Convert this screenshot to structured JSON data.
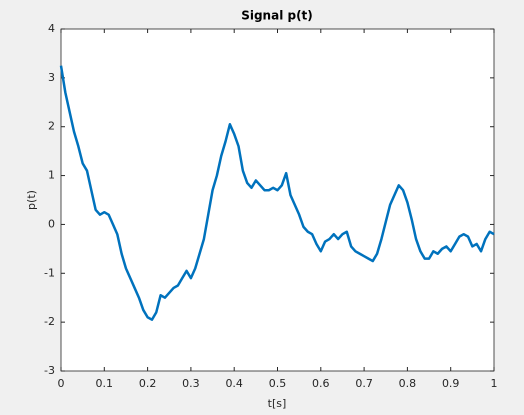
{
  "chart_data": {
    "type": "line",
    "title": "Signal p(t)",
    "x_label": "t[s]",
    "y_label": "p(t)",
    "x": [
      0,
      0.01,
      0.02,
      0.03,
      0.04,
      0.05,
      0.06,
      0.07,
      0.08,
      0.09,
      0.1,
      0.11,
      0.12,
      0.13,
      0.14,
      0.15,
      0.16,
      0.17,
      0.18,
      0.19,
      0.2,
      0.21,
      0.22,
      0.23,
      0.24,
      0.25,
      0.26,
      0.27,
      0.28,
      0.29,
      0.3,
      0.31,
      0.32,
      0.33,
      0.34,
      0.35,
      0.36,
      0.37,
      0.38,
      0.39,
      0.4,
      0.41,
      0.42,
      0.43,
      0.44,
      0.45,
      0.46,
      0.47,
      0.48,
      0.49,
      0.5,
      0.51,
      0.52,
      0.53,
      0.54,
      0.55,
      0.56,
      0.57,
      0.58,
      0.59,
      0.6,
      0.61,
      0.62,
      0.63,
      0.64,
      0.65,
      0.66,
      0.67,
      0.68,
      0.69,
      0.7,
      0.71,
      0.72,
      0.73,
      0.74,
      0.75,
      0.76,
      0.77,
      0.78,
      0.79,
      0.8,
      0.81,
      0.82,
      0.83,
      0.84,
      0.85,
      0.86,
      0.87,
      0.88,
      0.89,
      0.9,
      0.91,
      0.92,
      0.93,
      0.94,
      0.95,
      0.96,
      0.97,
      0.98,
      0.99,
      1
    ],
    "series": [
      {
        "name": "p(t)",
        "color": "#0072bd",
        "values": [
          3.25,
          2.7,
          2.3,
          1.9,
          1.6,
          1.25,
          1.1,
          0.7,
          0.3,
          0.2,
          0.25,
          0.2,
          0,
          -0.2,
          -0.6,
          -0.9,
          -1.1,
          -1.3,
          -1.5,
          -1.75,
          -1.9,
          -1.95,
          -1.8,
          -1.45,
          -1.5,
          -1.4,
          -1.3,
          -1.25,
          -1.1,
          -0.95,
          -1.1,
          -0.9,
          -0.6,
          -0.3,
          0.2,
          0.7,
          1,
          1.4,
          1.7,
          2.05,
          1.85,
          1.6,
          1.1,
          0.85,
          0.75,
          0.9,
          0.8,
          0.7,
          0.7,
          0.75,
          0.7,
          0.8,
          1.05,
          0.6,
          0.4,
          0.2,
          -0.05,
          -0.15,
          -0.2,
          -0.4,
          -0.55,
          -0.35,
          -0.3,
          -0.2,
          -0.3,
          -0.2,
          -0.15,
          -0.45,
          -0.55,
          -0.6,
          -0.65,
          -0.7,
          -0.75,
          -0.6,
          -0.3,
          0.05,
          0.4,
          0.6,
          0.8,
          0.7,
          0.45,
          0.1,
          -0.3,
          -0.55,
          -0.7,
          -0.7,
          -0.55,
          -0.6,
          -0.5,
          -0.45,
          -0.55,
          -0.4,
          -0.25,
          -0.2,
          -0.25,
          -0.45,
          -0.4,
          -0.55,
          -0.3,
          -0.15,
          -0.2
        ]
      }
    ],
    "xlim": [
      0,
      1
    ],
    "ylim": [
      -3,
      4
    ],
    "xticks": [
      0,
      0.1,
      0.2,
      0.3,
      0.4,
      0.5,
      0.6,
      0.7,
      0.8,
      0.9,
      1
    ],
    "yticks": [
      -3,
      -2,
      -1,
      0,
      1,
      2,
      3,
      4
    ],
    "grid": false
  }
}
